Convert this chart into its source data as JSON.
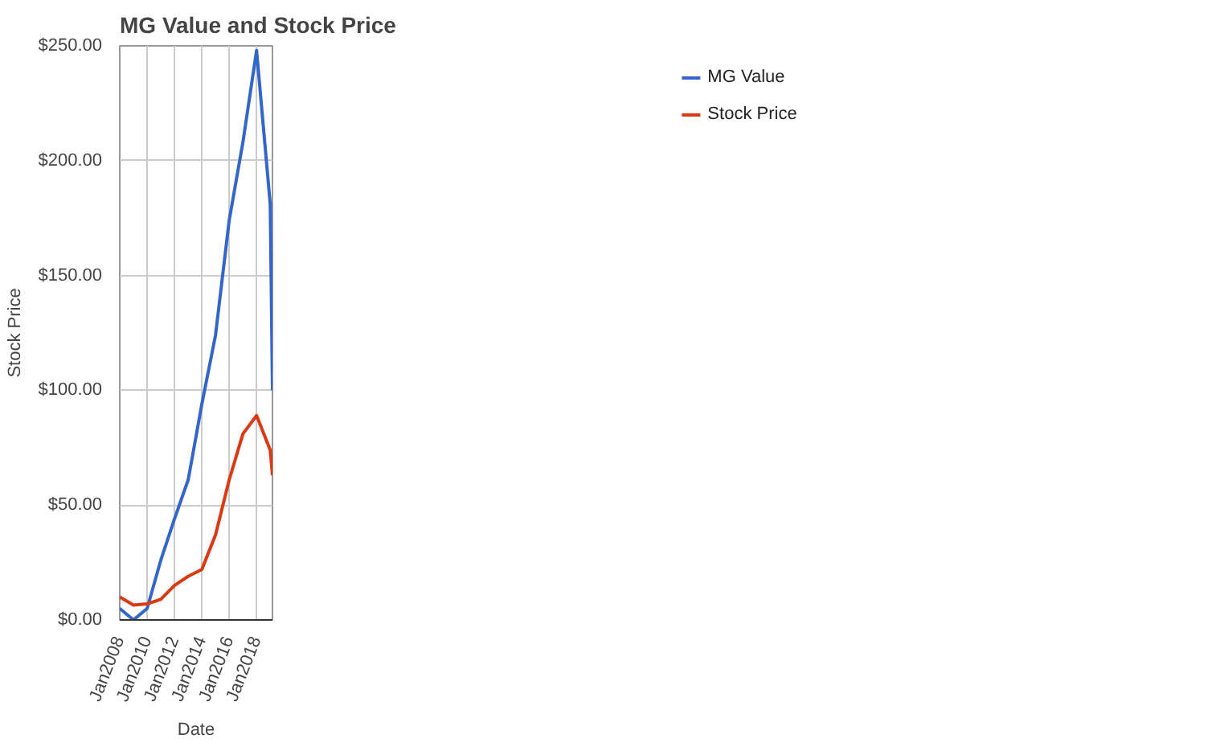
{
  "chart_data": {
    "type": "line",
    "title": "MG Value and Stock Price",
    "xlabel": "Date",
    "ylabel": "Stock Price",
    "x": [
      "2008-01",
      "2009-01",
      "2010-01",
      "2011-01",
      "2012-01",
      "2013-01",
      "2014-01",
      "2015-01",
      "2016-01",
      "2017-01",
      "2018-01",
      "2019-01",
      "2019-03"
    ],
    "series": [
      {
        "name": "MG Value",
        "color": "#3366cc",
        "values": [
          5,
          0,
          5,
          26,
          44,
          61,
          94,
          124,
          174,
          208,
          248,
          181,
          100
        ]
      },
      {
        "name": "Stock Price",
        "color": "#dc3912",
        "values": [
          10,
          6.5,
          7,
          9,
          15,
          19,
          22,
          37,
          61,
          81,
          89,
          74,
          63
        ]
      }
    ],
    "xlim": [
      "2008-01",
      "2019-03"
    ],
    "xticks": [
      {
        "value": "2008-01",
        "label": "Jan2008"
      },
      {
        "value": "2010-01",
        "label": "Jan2010"
      },
      {
        "value": "2012-01",
        "label": "Jan2012"
      },
      {
        "value": "2014-01",
        "label": "Jan2014"
      },
      {
        "value": "2016-01",
        "label": "Jan2016"
      },
      {
        "value": "2018-01",
        "label": "Jan2018"
      }
    ],
    "ylim": [
      0,
      250
    ],
    "yticks": [
      {
        "value": 0,
        "label": "$0.00"
      },
      {
        "value": 50,
        "label": "$50.00"
      },
      {
        "value": 100,
        "label": "$100.00"
      },
      {
        "value": 150,
        "label": "$150.00"
      },
      {
        "value": 200,
        "label": "$200.00"
      },
      {
        "value": 250,
        "label": "$250.00"
      }
    ],
    "grid": true,
    "legend": "right",
    "marker": "none",
    "line_style": "solid"
  }
}
